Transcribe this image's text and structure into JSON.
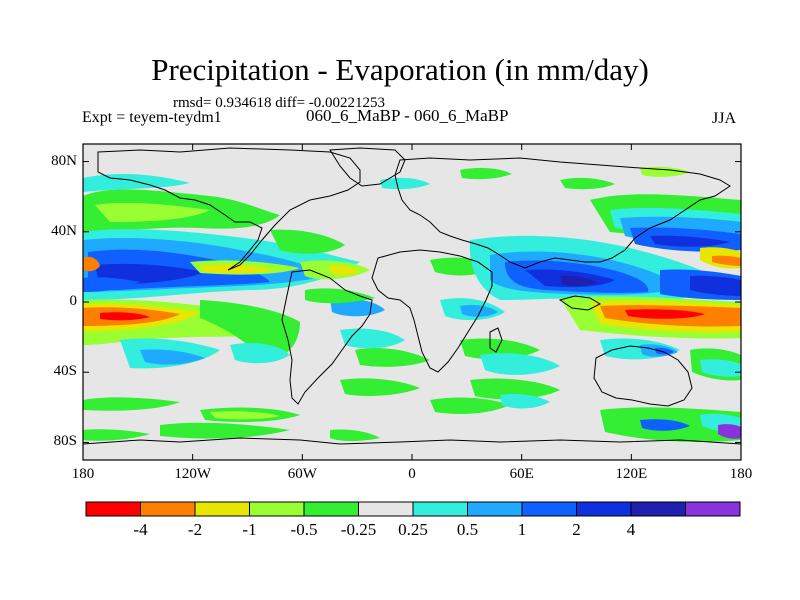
{
  "title": "Precipitation - Evaporation (in mm/day)",
  "stats": "rmsd= 0.934618  diff= -0.00221253",
  "experiment": "Expt = teyem-teydm1",
  "subtitle": "060_6_MaBP - 060_6_MaBP",
  "season": "JJA",
  "axes": {
    "lat_ticks": [
      {
        "value": 80,
        "label": "80N"
      },
      {
        "value": 40,
        "label": "40N"
      },
      {
        "value": 0,
        "label": "0"
      },
      {
        "value": -40,
        "label": "40S"
      },
      {
        "value": -80,
        "label": "80S"
      }
    ],
    "lon_ticks": [
      {
        "value": -180,
        "label": "180"
      },
      {
        "value": -120,
        "label": "120W"
      },
      {
        "value": -60,
        "label": "60W"
      },
      {
        "value": 0,
        "label": "0"
      },
      {
        "value": 60,
        "label": "60E"
      },
      {
        "value": 120,
        "label": "120E"
      },
      {
        "value": 180,
        "label": "180"
      }
    ],
    "lat_range": [
      -90,
      90
    ],
    "lon_range": [
      -180,
      180
    ]
  },
  "colorbar": {
    "colors": [
      "#ff0000",
      "#ff8000",
      "#e6e600",
      "#99ff33",
      "#33ee33",
      "#e6e6e6",
      "#33eedd",
      "#1faaff",
      "#1060ff",
      "#1030dd",
      "#2020b0",
      "#8833dd"
    ],
    "labels": [
      "-4",
      "-2",
      "-1",
      "-0.5",
      "-0.25",
      "0.25",
      "0.5",
      "1",
      "2",
      "4"
    ]
  },
  "background_color": "#e6e6e6"
}
